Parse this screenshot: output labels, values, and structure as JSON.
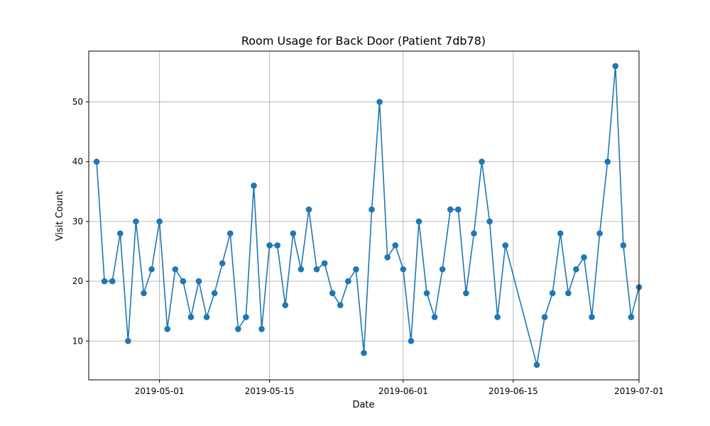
{
  "chart_data": {
    "type": "line",
    "title": "Room Usage for Back Door (Patient 7db78)",
    "xlabel": "Date",
    "ylabel": "Visit Count",
    "xticks": [
      "2019-05-01",
      "2019-05-15",
      "2019-06-01",
      "2019-06-15",
      "2019-07-01"
    ],
    "yticks": [
      10,
      20,
      30,
      40,
      50
    ],
    "ylim": [
      3.5,
      58.5
    ],
    "xlim": [
      "2019-04-22",
      "2019-07-01"
    ],
    "grid": true,
    "color": "#1f77b4",
    "series": [
      {
        "x": [
          "2019-04-23",
          "2019-04-24",
          "2019-04-25",
          "2019-04-26",
          "2019-04-27",
          "2019-04-28",
          "2019-04-29",
          "2019-04-30",
          "2019-05-01",
          "2019-05-02",
          "2019-05-03",
          "2019-05-04",
          "2019-05-05",
          "2019-05-06",
          "2019-05-07",
          "2019-05-08",
          "2019-05-09",
          "2019-05-10",
          "2019-05-11",
          "2019-05-12",
          "2019-05-13",
          "2019-05-14",
          "2019-05-15",
          "2019-05-16",
          "2019-05-17",
          "2019-05-18",
          "2019-05-19",
          "2019-05-20",
          "2019-05-21",
          "2019-05-22",
          "2019-05-23",
          "2019-05-24",
          "2019-05-25",
          "2019-05-26",
          "2019-05-27",
          "2019-05-28",
          "2019-05-29",
          "2019-05-30",
          "2019-05-31",
          "2019-06-01",
          "2019-06-02",
          "2019-06-03",
          "2019-06-04",
          "2019-06-05",
          "2019-06-06",
          "2019-06-07",
          "2019-06-08",
          "2019-06-09",
          "2019-06-10",
          "2019-06-11",
          "2019-06-12",
          "2019-06-13",
          "2019-06-14",
          "2019-06-18",
          "2019-06-19",
          "2019-06-20",
          "2019-06-21",
          "2019-06-22",
          "2019-06-23",
          "2019-06-24",
          "2019-06-25",
          "2019-06-26",
          "2019-06-27",
          "2019-06-28",
          "2019-06-29",
          "2019-06-30",
          "2019-07-01"
        ],
        "y": [
          40,
          20,
          20,
          28,
          10,
          30,
          18,
          22,
          30,
          12,
          22,
          20,
          14,
          20,
          14,
          18,
          23,
          28,
          12,
          14,
          36,
          12,
          26,
          26,
          16,
          28,
          22,
          32,
          22,
          23,
          18,
          16,
          20,
          22,
          8,
          32,
          50,
          24,
          26,
          22,
          10,
          30,
          18,
          14,
          22,
          32,
          32,
          18,
          28,
          40,
          30,
          14,
          26,
          6,
          14,
          18,
          28,
          18,
          22,
          24,
          14,
          28,
          40,
          56,
          26,
          14,
          19
        ]
      }
    ]
  }
}
